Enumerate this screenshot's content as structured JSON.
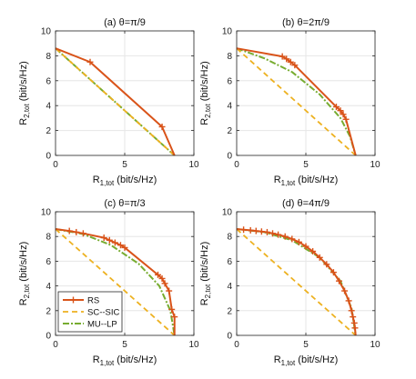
{
  "chart_data": [
    {
      "type": "line",
      "title": "(a) θ=π/9",
      "xlabel": "R",
      "xlabel_sub": "1,tot",
      "xlabel_unit": " (bit/s/Hz)",
      "ylabel": "R",
      "ylabel_sub": "2,tot",
      "ylabel_unit": " (bit/s/Hz)",
      "xlim": [
        0,
        10
      ],
      "ylim": [
        0,
        10
      ],
      "xticks": [
        "0",
        "5",
        "10"
      ],
      "yticks": [
        "0",
        "2",
        "4",
        "6",
        "8",
        "10"
      ],
      "grid": true,
      "series": [
        {
          "name": "RS",
          "x": [
            0,
            2.5,
            7.7,
            8.6
          ],
          "y": [
            8.6,
            7.5,
            2.3,
            0
          ],
          "markers": [
            [
              2.5,
              7.5
            ],
            [
              7.7,
              2.3
            ]
          ]
        },
        {
          "name": "SC--SIC",
          "x": [
            0,
            8.6
          ],
          "y": [
            8.6,
            0
          ],
          "markers": []
        },
        {
          "name": "MU--LP",
          "x": [
            0,
            8.6
          ],
          "y": [
            8.6,
            0
          ],
          "markers": []
        }
      ]
    },
    {
      "type": "line",
      "title": "(b) θ=2π/9",
      "xlabel": "R",
      "xlabel_sub": "1,tot",
      "xlabel_unit": " (bit/s/Hz)",
      "ylabel": "R",
      "ylabel_sub": "2,tot",
      "ylabel_unit": " (bit/s/Hz)",
      "xlim": [
        0,
        10
      ],
      "ylim": [
        0,
        10
      ],
      "xticks": [
        "0",
        "5",
        "10"
      ],
      "yticks": [
        "0",
        "2",
        "4",
        "6",
        "8",
        "10"
      ],
      "grid": true,
      "series": [
        {
          "name": "RS",
          "x": [
            0,
            3.3,
            3.6,
            3.9,
            4.2,
            7.2,
            7.5,
            7.7,
            7.9,
            8.6
          ],
          "y": [
            8.6,
            7.95,
            7.75,
            7.5,
            7.25,
            3.9,
            3.6,
            3.3,
            2.9,
            0
          ],
          "markers": [
            [
              3.3,
              7.95
            ],
            [
              3.6,
              7.75
            ],
            [
              3.9,
              7.5
            ],
            [
              4.2,
              7.25
            ],
            [
              7.2,
              3.9
            ],
            [
              7.5,
              3.6
            ],
            [
              7.7,
              3.3
            ],
            [
              7.9,
              2.9
            ]
          ]
        },
        {
          "name": "SC--SIC",
          "x": [
            0,
            8.6
          ],
          "y": [
            8.6,
            0
          ],
          "markers": []
        },
        {
          "name": "MU--LP",
          "x": [
            0,
            2.0,
            4.0,
            6.0,
            7.5,
            8.2,
            8.6
          ],
          "y": [
            8.6,
            7.8,
            6.7,
            4.9,
            3.0,
            1.5,
            0
          ],
          "markers": []
        }
      ]
    },
    {
      "type": "line",
      "title": "(c) θ=π/3",
      "xlabel": "R",
      "xlabel_sub": "1,tot",
      "xlabel_unit": " (bit/s/Hz)",
      "ylabel": "R",
      "ylabel_sub": "2,tot",
      "ylabel_unit": " (bit/s/Hz)",
      "xlim": [
        0,
        10
      ],
      "ylim": [
        0,
        10
      ],
      "xticks": [
        "0",
        "5",
        "10"
      ],
      "yticks": [
        "0",
        "2",
        "4",
        "6",
        "8",
        "10"
      ],
      "grid": true,
      "series": [
        {
          "name": "RS",
          "x": [
            0,
            1.0,
            1.5,
            2.0,
            3.5,
            3.9,
            4.3,
            4.7,
            5.0,
            7.4,
            7.7,
            7.9,
            8.2,
            8.4,
            8.6,
            8.6
          ],
          "y": [
            8.6,
            8.45,
            8.35,
            8.25,
            7.9,
            7.7,
            7.5,
            7.3,
            7.1,
            4.9,
            4.6,
            4.2,
            3.6,
            2.1,
            1.5,
            0
          ],
          "markers": [
            [
              1.0,
              8.45
            ],
            [
              1.5,
              8.35
            ],
            [
              2.0,
              8.25
            ],
            [
              3.5,
              7.9
            ],
            [
              3.9,
              7.7
            ],
            [
              4.3,
              7.5
            ],
            [
              4.7,
              7.3
            ],
            [
              5.0,
              7.1
            ],
            [
              7.4,
              4.9
            ],
            [
              7.7,
              4.6
            ],
            [
              7.9,
              4.2
            ],
            [
              8.2,
              3.6
            ],
            [
              8.4,
              2.1
            ],
            [
              8.6,
              1.5
            ]
          ]
        },
        {
          "name": "SC--SIC",
          "x": [
            0,
            8.6
          ],
          "y": [
            8.6,
            0
          ],
          "markers": []
        },
        {
          "name": "MU--LP",
          "x": [
            0,
            2.0,
            4.0,
            6.0,
            7.5,
            8.3,
            8.6
          ],
          "y": [
            8.6,
            8.2,
            7.3,
            5.8,
            4.0,
            2.0,
            0
          ],
          "markers": []
        }
      ]
    },
    {
      "type": "line",
      "title": "(d) θ=4π/9",
      "xlabel": "R",
      "xlabel_sub": "1,tot",
      "xlabel_unit": " (bit/s/Hz)",
      "ylabel": "R",
      "ylabel_sub": "2,tot",
      "ylabel_unit": " (bit/s/Hz)",
      "xlim": [
        0,
        10
      ],
      "ylim": [
        0,
        10
      ],
      "xticks": [
        "0",
        "5",
        "10"
      ],
      "yticks": [
        "0",
        "2",
        "4",
        "6",
        "8",
        "10"
      ],
      "grid": true,
      "series": [
        {
          "name": "RS",
          "x": [
            0,
            0.5,
            1.0,
            1.4,
            1.8,
            2.2,
            2.6,
            3.0,
            3.5,
            4.0,
            4.5,
            5.0,
            5.5,
            6.0,
            6.5,
            7.0,
            7.4,
            7.8,
            8.1,
            8.3,
            8.4,
            8.5,
            8.55,
            8.6
          ],
          "y": [
            8.6,
            8.55,
            8.5,
            8.45,
            8.4,
            8.35,
            8.25,
            8.15,
            8.0,
            7.8,
            7.55,
            7.2,
            6.8,
            6.3,
            5.75,
            5.1,
            4.4,
            3.6,
            2.8,
            2.0,
            1.5,
            1.0,
            0.6,
            0
          ],
          "markers": [
            [
              0.5,
              8.55
            ],
            [
              1.0,
              8.5
            ],
            [
              1.4,
              8.45
            ],
            [
              1.8,
              8.4
            ],
            [
              2.2,
              8.35
            ],
            [
              2.6,
              8.25
            ],
            [
              3.0,
              8.15
            ],
            [
              3.5,
              8.0
            ],
            [
              4.0,
              7.8
            ],
            [
              4.5,
              7.55
            ],
            [
              5.0,
              7.2
            ],
            [
              5.5,
              6.8
            ],
            [
              6.0,
              6.3
            ],
            [
              6.5,
              5.75
            ],
            [
              7.0,
              5.1
            ],
            [
              7.4,
              4.4
            ],
            [
              7.8,
              3.6
            ],
            [
              8.1,
              2.8
            ],
            [
              8.3,
              2.0
            ],
            [
              8.4,
              1.5
            ],
            [
              8.5,
              1.0
            ],
            [
              8.55,
              0.6
            ]
          ]
        },
        {
          "name": "SC--SIC",
          "x": [
            0,
            8.6
          ],
          "y": [
            8.6,
            0
          ],
          "markers": []
        },
        {
          "name": "MU--LP",
          "x": [
            0,
            2.0,
            4.0,
            6.0,
            7.5,
            8.3,
            8.6
          ],
          "y": [
            8.6,
            8.35,
            7.7,
            6.3,
            4.4,
            2.2,
            0
          ],
          "markers": []
        }
      ]
    }
  ],
  "legend": {
    "panel": 2,
    "placement": "bottom-left",
    "entries": [
      "RS",
      "SC--SIC",
      "MU--LP"
    ]
  },
  "styles": {
    "RS": {
      "color": "#D95319",
      "dash": "",
      "width": 2
    },
    "SC--SIC": {
      "color": "#EDB120",
      "dash": "6,4",
      "width": 1.8
    },
    "MU--LP": {
      "color": "#77AC30",
      "dash": "7,2,2,2",
      "width": 2
    },
    "grid_color": "#e6e6e6",
    "axis_color": "#262626"
  }
}
